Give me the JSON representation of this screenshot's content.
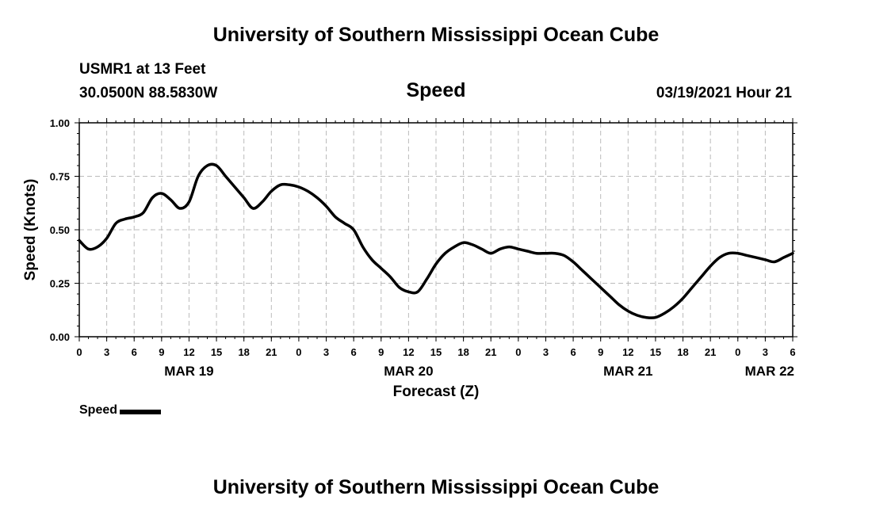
{
  "page_title": "University of Southern Mississippi Ocean Cube",
  "station": "USMR1 at 13 Feet",
  "coords": "30.0500N 88.5830W",
  "datetime": "03/19/2021 Hour 21",
  "footer_title": "University of Southern Mississippi Ocean Cube",
  "chart_data": {
    "type": "line",
    "title": "Speed",
    "xlabel": "Forecast (Z)",
    "ylabel": "Speed (Knots)",
    "ylim": [
      0,
      1
    ],
    "xlim": [
      0,
      78
    ],
    "grid": true,
    "yticks": [
      "0.00",
      "0.25",
      "0.50",
      "0.75",
      "1.00"
    ],
    "ytick_values": [
      0,
      0.25,
      0.5,
      0.75,
      1
    ],
    "xticks": [
      "0",
      "3",
      "6",
      "9",
      "12",
      "15",
      "18",
      "21",
      "0",
      "3",
      "6",
      "9",
      "12",
      "15",
      "18",
      "21",
      "0",
      "3",
      "6",
      "9",
      "12",
      "15",
      "18",
      "21",
      "0",
      "3",
      "6"
    ],
    "date_labels": [
      {
        "label": "MAR 19",
        "hour": 12
      },
      {
        "label": "MAR 20",
        "hour": 36
      },
      {
        "label": "MAR 21",
        "hour": 60
      },
      {
        "label": "MAR 22",
        "hour": 78
      }
    ],
    "legend": [
      {
        "name": "Speed",
        "color": "#000000"
      }
    ],
    "series": [
      {
        "name": "Speed",
        "x": [
          0,
          1,
          2,
          3,
          4,
          5,
          6,
          7,
          8,
          9,
          10,
          11,
          12,
          13,
          14,
          15,
          16,
          17,
          18,
          19,
          20,
          21,
          22,
          23,
          24,
          25,
          26,
          27,
          28,
          29,
          30,
          31,
          32,
          33,
          34,
          35,
          36,
          37,
          38,
          39,
          40,
          41,
          42,
          43,
          44,
          45,
          46,
          47,
          48,
          49,
          50,
          51,
          52,
          53,
          54,
          55,
          56,
          57,
          58,
          59,
          60,
          61,
          62,
          63,
          64,
          65,
          66,
          67,
          68,
          69,
          70,
          71,
          72,
          73,
          74,
          75,
          76,
          77,
          78
        ],
        "values": [
          0.45,
          0.41,
          0.42,
          0.46,
          0.53,
          0.55,
          0.56,
          0.58,
          0.65,
          0.67,
          0.64,
          0.6,
          0.63,
          0.75,
          0.8,
          0.8,
          0.75,
          0.7,
          0.65,
          0.6,
          0.63,
          0.68,
          0.71,
          0.71,
          0.7,
          0.68,
          0.65,
          0.61,
          0.56,
          0.53,
          0.5,
          0.42,
          0.36,
          0.32,
          0.28,
          0.23,
          0.21,
          0.21,
          0.27,
          0.34,
          0.39,
          0.42,
          0.44,
          0.43,
          0.41,
          0.39,
          0.41,
          0.42,
          0.41,
          0.4,
          0.39,
          0.39,
          0.39,
          0.38,
          0.35,
          0.31,
          0.27,
          0.23,
          0.19,
          0.15,
          0.12,
          0.1,
          0.09,
          0.09,
          0.11,
          0.14,
          0.18,
          0.23,
          0.28,
          0.33,
          0.37,
          0.39,
          0.39,
          0.38,
          0.37,
          0.36,
          0.35,
          0.37,
          0.39
        ]
      }
    ]
  }
}
